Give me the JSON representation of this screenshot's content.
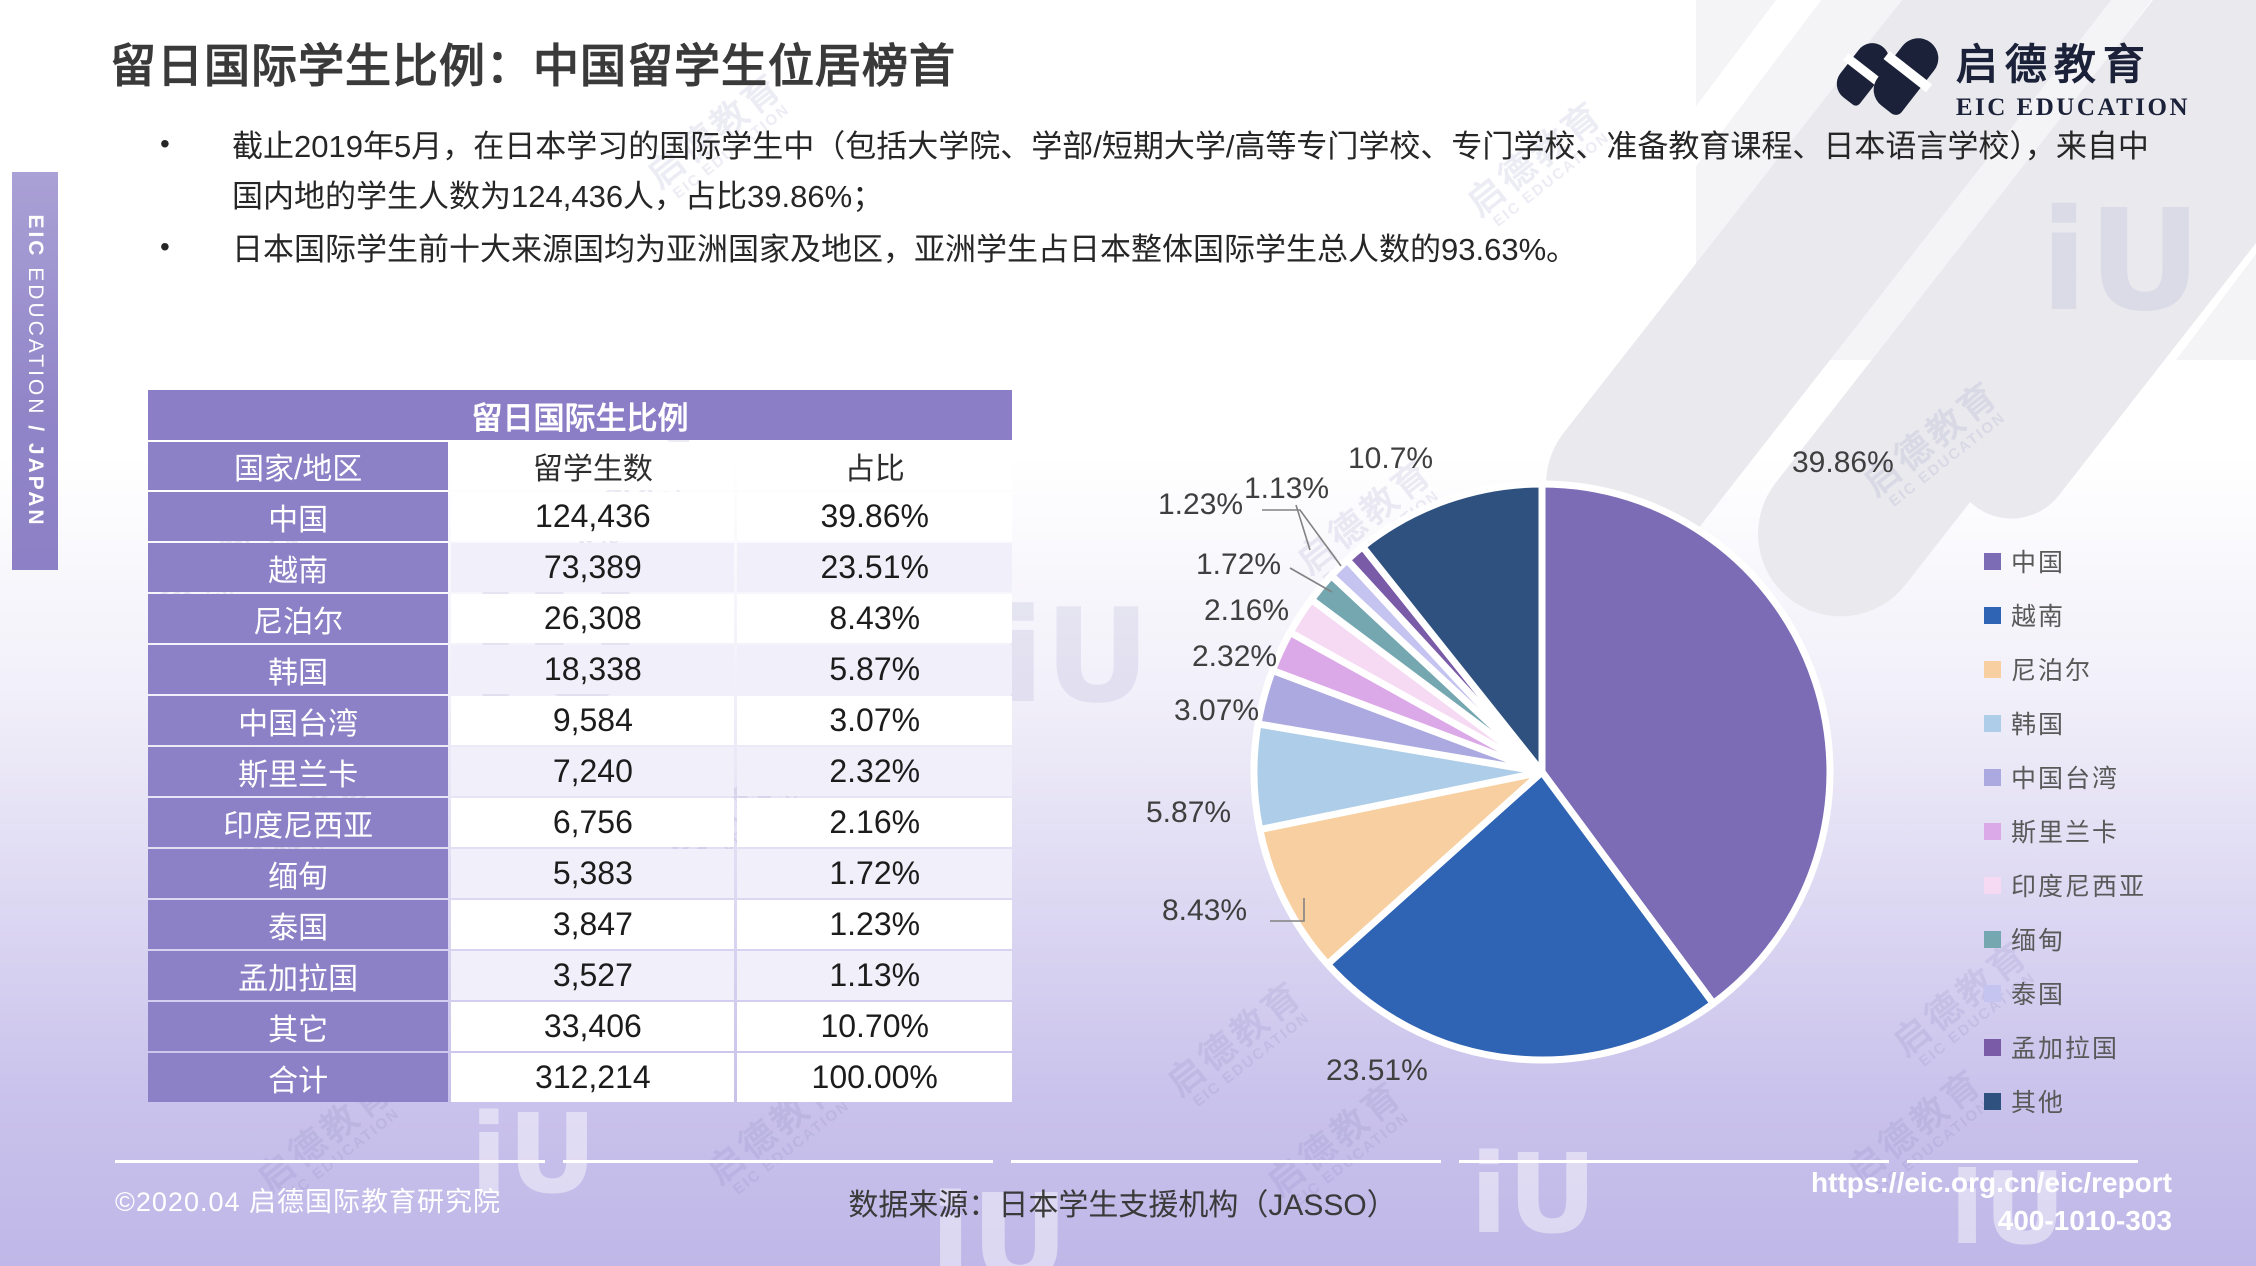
{
  "header": {
    "title": "留日国际学生比例：中国留学生位居榜首"
  },
  "logo": {
    "cn": "启德教育",
    "en": "EIC EDUCATION"
  },
  "sidebar": {
    "eic": "EIC",
    "education": "EDUCATION",
    "japan": "/ JAPAN"
  },
  "bullet_char": "•",
  "bullets": [
    "截止2019年5月，在日本学习的国际学生中（包括大学院、学部/短期大学/高等专门学校、专门学校、准备教育课程、日本语言学校），来自中国内地的学生人数为124,436人，占比39.86%；",
    "日本国际学生前十大来源国均为亚洲国家及地区，亚洲学生占日本整体国际学生总人数的93.63%。"
  ],
  "table": {
    "title": "留日国际生比例",
    "columns": [
      "国家/地区",
      "留学生数",
      "占比"
    ],
    "rows": [
      [
        "中国",
        "124,436",
        "39.86%"
      ],
      [
        "越南",
        "73,389",
        "23.51%"
      ],
      [
        "尼泊尔",
        "26,308",
        "8.43%"
      ],
      [
        "韩国",
        "18,338",
        "5.87%"
      ],
      [
        "中国台湾",
        "9,584",
        "3.07%"
      ],
      [
        "斯里兰卡",
        "7,240",
        "2.32%"
      ],
      [
        "印度尼西亚",
        "6,756",
        "2.16%"
      ],
      [
        "缅甸",
        "5,383",
        "1.72%"
      ],
      [
        "泰国",
        "3,847",
        "1.23%"
      ],
      [
        "孟加拉国",
        "3,527",
        "1.13%"
      ],
      [
        "其它",
        "33,406",
        "10.70%"
      ],
      [
        "合计",
        "312,214",
        "100.00%"
      ]
    ]
  },
  "chart_data": {
    "type": "pie",
    "title": "留日国际生比例",
    "categories": [
      "中国",
      "越南",
      "尼泊尔",
      "韩国",
      "中国台湾",
      "斯里兰卡",
      "印度尼西亚",
      "缅甸",
      "泰国",
      "孟加拉国",
      "其他"
    ],
    "values": [
      39.86,
      23.51,
      8.43,
      5.87,
      3.07,
      2.32,
      2.16,
      1.72,
      1.23,
      1.13,
      10.7
    ],
    "labels": [
      "39.86%",
      "23.51%",
      "8.43%",
      "5.87%",
      "3.07%",
      "2.32%",
      "2.16%",
      "1.72%",
      "1.23%",
      "1.13%",
      "10.7%"
    ],
    "colors": [
      "#7C6BB5",
      "#2F63B3",
      "#F8CFA0",
      "#AECDE8",
      "#ABA9E0",
      "#DCA9E8",
      "#F6D9F2",
      "#74A7B0",
      "#C5C3F0",
      "#7A5BA8",
      "#2E5180"
    ],
    "start_angle_deg_from_top": 0,
    "direction": "clockwise",
    "legend_position": "right",
    "data_labels": "outside"
  },
  "watermark": {
    "cn": "启德教育",
    "en": "EIC EDUCATION",
    "iu": "iU"
  },
  "footer": {
    "copyright": "©2020.04 启德国际教育研究院",
    "source": "数据来源：日本学生支援机构（JASSO）",
    "url": "https://eic.org.cn/eic/report",
    "phone": "400-1010-303"
  }
}
